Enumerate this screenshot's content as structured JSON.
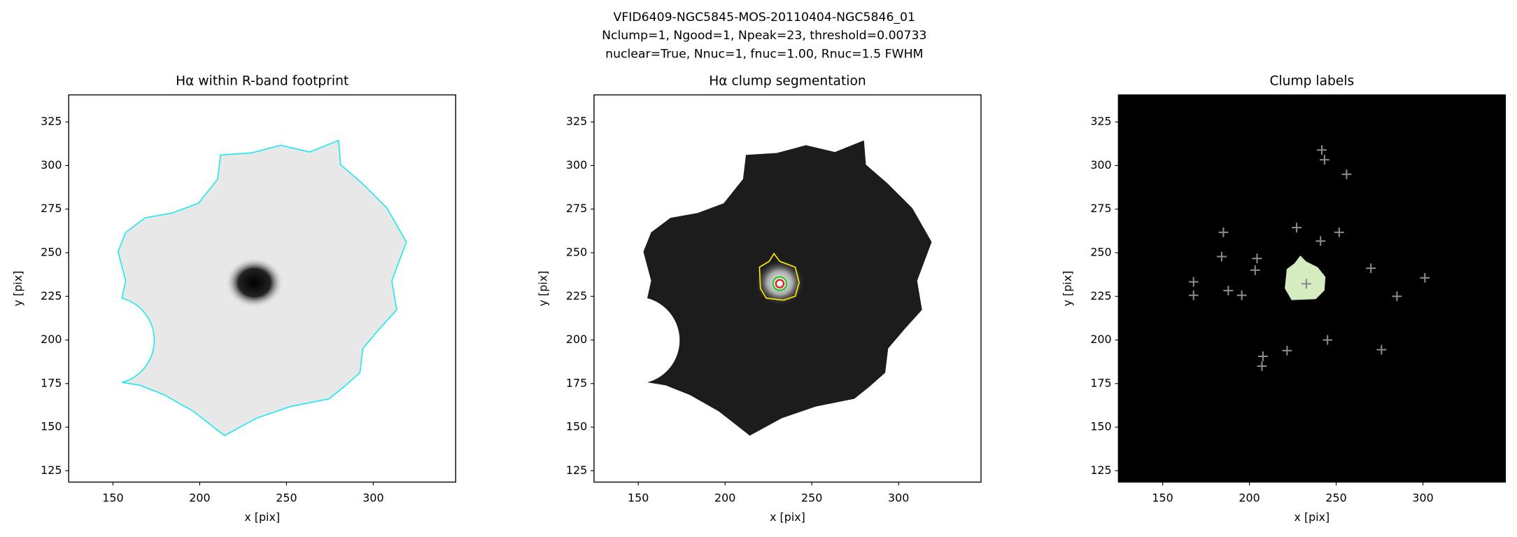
{
  "suptitle": [
    "VFID6409-NGC5845-MOS-20110404-NGC5846_01",
    "Nclump=1, Ngood=1, Npeak=23, threshold=0.00733",
    "nuclear=True, Nnuc=1, fnuc=1.00, Rnuc=1.5 FWHM"
  ],
  "chart_data": [
    {
      "type": "image",
      "title": "Hα within R-band footprint",
      "x_label": "x [pix]",
      "y_label": "y [pix]",
      "xlim": [
        124.5,
        347.5
      ],
      "ylim": [
        118.5,
        340.5
      ],
      "xticks": [
        150,
        200,
        250,
        300
      ],
      "yticks": [
        125,
        150,
        175,
        200,
        225,
        250,
        275,
        300,
        325
      ]
    },
    {
      "type": "image",
      "title": "Hα clump segmentation",
      "x_label": "x [pix]",
      "y_label": "y [pix]",
      "xlim": [
        124.5,
        347.5
      ],
      "ylim": [
        118.5,
        340.5
      ],
      "xticks": [
        150,
        200,
        250,
        300
      ],
      "yticks": [
        125,
        150,
        175,
        200,
        225,
        250,
        275,
        300,
        325
      ]
    },
    {
      "type": "image",
      "title": "Clump labels",
      "x_label": "x [pix]",
      "y_label": "y [pix]",
      "xlim": [
        124.5,
        347.5
      ],
      "ylim": [
        118.5,
        340.5
      ],
      "xticks": [
        150,
        200,
        250,
        300
      ],
      "yticks": [
        125,
        150,
        175,
        200,
        225,
        250,
        275,
        300,
        325
      ],
      "marker_color": "#8a8a8a",
      "x": [
        241.7,
        243.3,
        256,
        185,
        227.2,
        241,
        251.7,
        184,
        204.4,
        203.3,
        270,
        167.8,
        167.8,
        187.8,
        195.6,
        232.8,
        285,
        301.1,
        245,
        207.8,
        207.2,
        221.7,
        276.1
      ],
      "y": [
        308.9,
        303.3,
        295,
        261.7,
        264.4,
        256.7,
        261.7,
        247.8,
        246.7,
        240,
        241.1,
        233.3,
        225.6,
        228.3,
        225.6,
        232.2,
        225,
        235.6,
        200,
        190.6,
        185,
        193.9,
        194.4
      ]
    }
  ]
}
